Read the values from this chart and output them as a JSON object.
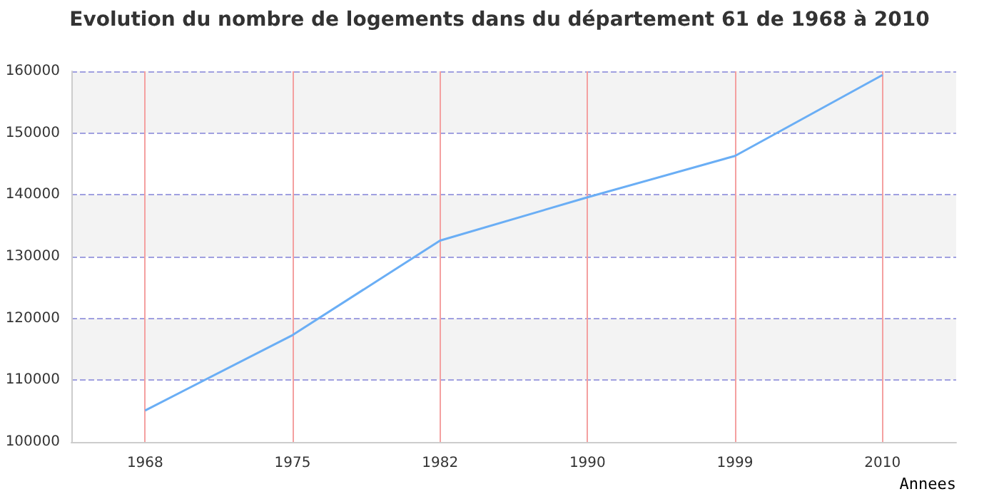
{
  "chart_data": {
    "type": "line",
    "title": "Evolution du nombre de logements dans du département 61 de 1968 à 2010",
    "xlabel": "Annees",
    "categories": [
      "1968",
      "1975",
      "1982",
      "1990",
      "1999",
      "2010"
    ],
    "series": [
      {
        "color": "#6aaef5",
        "values": [
          105100,
          117300,
          132600,
          139600,
          146300,
          159400
        ]
      }
    ],
    "ylim": [
      100000,
      160000
    ],
    "yticks": [
      100000,
      110000,
      120000,
      130000,
      140000,
      150000,
      160000
    ],
    "grid": true,
    "marker": "none",
    "line_style": "solid"
  }
}
